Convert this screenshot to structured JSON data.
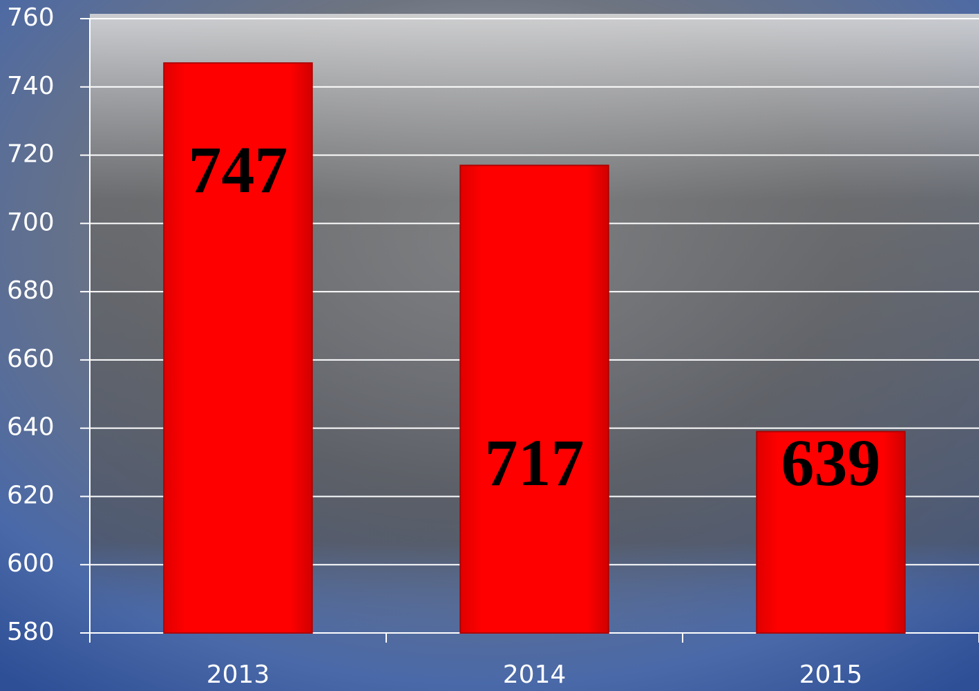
{
  "chart_data": {
    "type": "bar",
    "categories": [
      "2013",
      "2014",
      "2015"
    ],
    "values": [
      747,
      717,
      639
    ],
    "color": "#ff0000",
    "ylim": [
      580,
      760
    ],
    "yticks": [
      580,
      600,
      620,
      640,
      660,
      680,
      700,
      720,
      740,
      760
    ],
    "grid": true
  }
}
